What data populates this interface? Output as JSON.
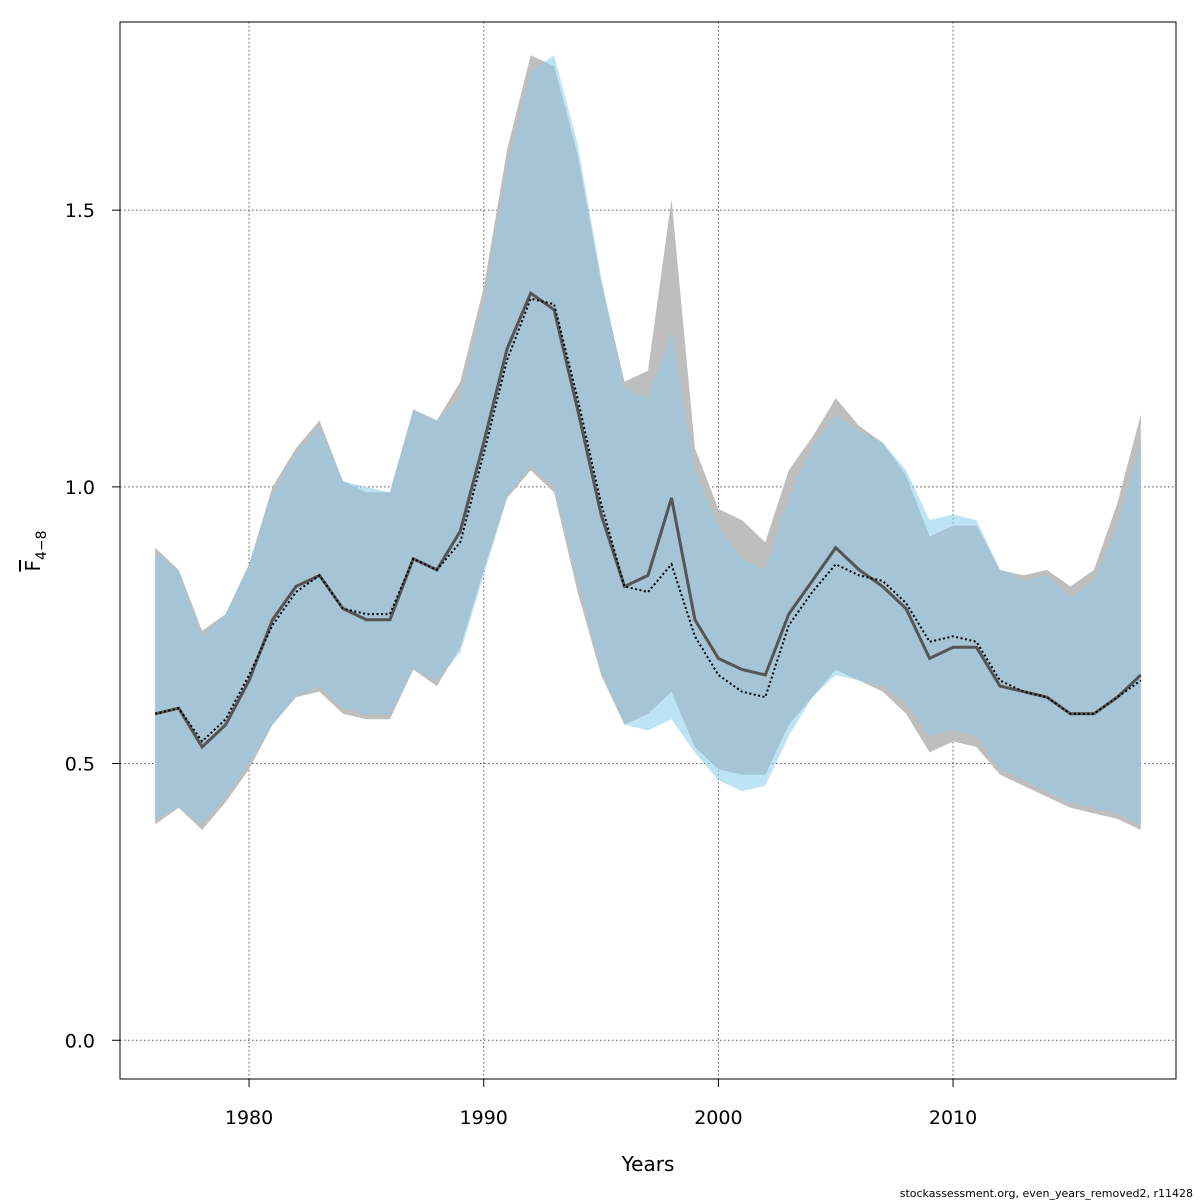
{
  "chart_data": {
    "type": "area",
    "xlabel": "Years",
    "ylabel_base": "F",
    "ylabel_sub": "4−8",
    "footer": "stockassessment.org, even_years_removed2, r11428",
    "xlim": [
      1974.5,
      2019.5
    ],
    "ylim": [
      -0.07,
      1.84
    ],
    "xticks": [
      1980,
      1990,
      2000,
      2010
    ],
    "yticks": [
      0.0,
      0.5,
      1.0,
      1.5
    ],
    "ytick_labels": [
      "0.0",
      "0.5",
      "1.0",
      "1.5"
    ],
    "grid": true,
    "colors": {
      "band_grey": "#bebebe",
      "band_blue": "#87ceeb",
      "overlap": "#a5c4d5",
      "line_grey": "#555555",
      "line_dotted": "#000000"
    },
    "x": [
      1976,
      1977,
      1978,
      1979,
      1980,
      1981,
      1982,
      1983,
      1984,
      1985,
      1986,
      1987,
      1988,
      1989,
      1990,
      1991,
      1992,
      1993,
      1994,
      1995,
      1996,
      1997,
      1998,
      1999,
      2000,
      2001,
      2002,
      2003,
      2004,
      2005,
      2006,
      2007,
      2008,
      2009,
      2010,
      2011,
      2012,
      2013,
      2014,
      2015,
      2016,
      2017,
      2018
    ],
    "series": [
      {
        "style": "grey-solid",
        "values": [
          0.59,
          0.6,
          0.53,
          0.57,
          0.65,
          0.76,
          0.82,
          0.84,
          0.78,
          0.76,
          0.76,
          0.87,
          0.85,
          0.92,
          1.08,
          1.25,
          1.35,
          1.32,
          1.14,
          0.95,
          0.82,
          0.84,
          0.98,
          0.76,
          0.69,
          0.67,
          0.66,
          0.77,
          0.83,
          0.89,
          0.85,
          0.82,
          0.78,
          0.69,
          0.71,
          0.71,
          0.64,
          0.63,
          0.62,
          0.59,
          0.59,
          0.62,
          0.66
        ],
        "upper": [
          0.89,
          0.85,
          0.74,
          0.77,
          0.86,
          1.0,
          1.07,
          1.12,
          1.01,
          0.99,
          0.99,
          1.14,
          1.12,
          1.19,
          1.36,
          1.61,
          1.78,
          1.76,
          1.6,
          1.37,
          1.19,
          1.21,
          1.52,
          1.07,
          0.96,
          0.94,
          0.9,
          1.03,
          1.09,
          1.16,
          1.11,
          1.08,
          1.02,
          0.91,
          0.93,
          0.93,
          0.85,
          0.84,
          0.85,
          0.82,
          0.85,
          0.97,
          1.13
        ],
        "lower": [
          0.39,
          0.42,
          0.38,
          0.43,
          0.49,
          0.57,
          0.62,
          0.63,
          0.59,
          0.58,
          0.58,
          0.67,
          0.64,
          0.71,
          0.85,
          0.98,
          1.03,
          0.99,
          0.81,
          0.66,
          0.57,
          0.59,
          0.63,
          0.53,
          0.49,
          0.48,
          0.48,
          0.57,
          0.62,
          0.67,
          0.65,
          0.63,
          0.59,
          0.52,
          0.54,
          0.53,
          0.48,
          0.46,
          0.44,
          0.42,
          0.41,
          0.4,
          0.38
        ]
      },
      {
        "style": "blue-dotted",
        "values": [
          0.59,
          0.6,
          0.54,
          0.58,
          0.66,
          0.75,
          0.81,
          0.84,
          0.78,
          0.77,
          0.77,
          0.87,
          0.85,
          0.9,
          1.06,
          1.23,
          1.34,
          1.33,
          1.16,
          0.97,
          0.82,
          0.81,
          0.86,
          0.73,
          0.66,
          0.63,
          0.62,
          0.75,
          0.81,
          0.86,
          0.84,
          0.83,
          0.79,
          0.72,
          0.73,
          0.72,
          0.65,
          0.63,
          0.62,
          0.59,
          0.59,
          0.62,
          0.65
        ],
        "upper": [
          0.88,
          0.85,
          0.73,
          0.77,
          0.86,
          0.99,
          1.06,
          1.11,
          1.01,
          1.0,
          0.99,
          1.14,
          1.12,
          1.16,
          1.33,
          1.58,
          1.75,
          1.78,
          1.62,
          1.38,
          1.18,
          1.16,
          1.28,
          1.03,
          0.93,
          0.87,
          0.85,
          0.98,
          1.07,
          1.13,
          1.1,
          1.08,
          1.03,
          0.94,
          0.95,
          0.94,
          0.85,
          0.83,
          0.84,
          0.8,
          0.83,
          0.93,
          1.08
        ],
        "lower": [
          0.4,
          0.42,
          0.39,
          0.44,
          0.5,
          0.57,
          0.62,
          0.64,
          0.6,
          0.59,
          0.59,
          0.67,
          0.65,
          0.7,
          0.84,
          0.98,
          1.04,
          1.0,
          0.83,
          0.67,
          0.57,
          0.56,
          0.58,
          0.52,
          0.47,
          0.45,
          0.46,
          0.55,
          0.62,
          0.66,
          0.65,
          0.64,
          0.61,
          0.55,
          0.56,
          0.55,
          0.49,
          0.47,
          0.45,
          0.43,
          0.42,
          0.41,
          0.39
        ]
      }
    ]
  }
}
